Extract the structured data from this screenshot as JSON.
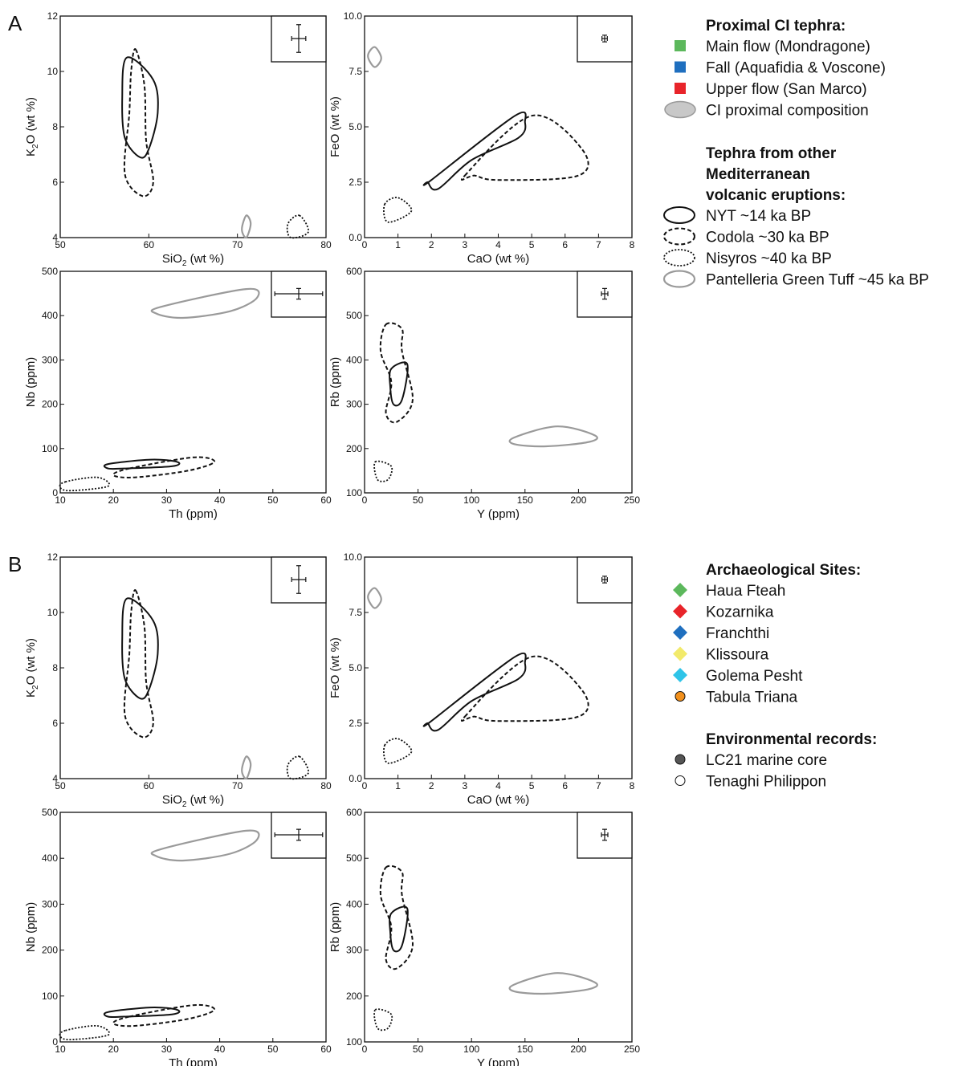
{
  "panel_labels": [
    "A",
    "B"
  ],
  "legend_a": {
    "title1": "Proximal CI tephra:",
    "items1": [
      {
        "label": "Main flow (Mondragone)",
        "color": "#5cb85c",
        "marker": "square"
      },
      {
        "label": "Fall (Aquafidia & Voscone)",
        "color": "#1f6fbf",
        "marker": "square"
      },
      {
        "label": "Upper flow (San Marco)",
        "color": "#e8242a",
        "marker": "square"
      },
      {
        "label": "CI proximal composition",
        "color": "#c8c8c8",
        "marker": "ellipse"
      }
    ],
    "title2_lines": [
      "Tephra from other",
      "Mediterranean",
      "volcanic eruptions:"
    ],
    "items2": [
      {
        "label": "NYT ~14 ka BP",
        "style": "solid"
      },
      {
        "label": "Codola ~30 ka BP",
        "style": "dashed"
      },
      {
        "label": "Nisyros ~40 ka BP",
        "style": "dotted"
      },
      {
        "label": "Pantelleria Green Tuff ~45 ka BP",
        "style": "gray"
      }
    ]
  },
  "legend_b": {
    "title1": "Archaeological Sites:",
    "items1": [
      {
        "label": "Haua Fteah",
        "color": "#5cb85c",
        "marker": "diamond"
      },
      {
        "label": "Kozarnika",
        "color": "#e8242a",
        "marker": "diamond"
      },
      {
        "label": "Franchthi",
        "color": "#1f6fbf",
        "marker": "diamond"
      },
      {
        "label": "Klissoura",
        "color": "#f2ea6b",
        "marker": "diamond"
      },
      {
        "label": "Golema Pesht",
        "color": "#2fc4e8",
        "marker": "diamond"
      },
      {
        "label": "Tabula Triana",
        "color": "#f2901c",
        "marker": "circle"
      }
    ],
    "title2": "Environmental records:",
    "items2": [
      {
        "label": "LC21 marine core",
        "color": "#555555",
        "marker": "circle"
      },
      {
        "label": "Tenaghi Philippon",
        "color": "#ffffff",
        "marker": "circle"
      }
    ]
  },
  "chart_data": [
    {
      "type": "scatter",
      "id": "k2o-sio2",
      "xlabel": "SiO",
      "xlabel_sub": "2",
      "xlabel_tail": " (wt %)",
      "ylabel": "K",
      "ylabel_sub": "2",
      "ylabel_tail": "O (wt %)",
      "xlim": [
        50,
        80
      ],
      "ylim": [
        4,
        12
      ],
      "xticks": [
        50,
        60,
        70,
        80
      ],
      "yticks": [
        4,
        6,
        8,
        10,
        12
      ],
      "xtick_labels": [
        "50",
        "60",
        "70",
        "80"
      ],
      "ytick_labels": [
        "4",
        "6",
        "8",
        "10",
        "12"
      ],
      "error_bar": {
        "x": 0.8,
        "y": 0.5
      },
      "fields": [
        {
          "style": "solid",
          "points": [
            [
              57.5,
              10.5
            ],
            [
              60.5,
              9.7
            ],
            [
              61,
              8.5
            ],
            [
              60,
              7.2
            ],
            [
              59,
              6.9
            ],
            [
              57.3,
              7.6
            ],
            [
              57,
              9.0
            ]
          ]
        },
        {
          "style": "dashed",
          "points": [
            [
              58.5,
              10.8
            ],
            [
              59.5,
              9.5
            ],
            [
              59.7,
              7.5
            ],
            [
              60.5,
              6.0
            ],
            [
              59.3,
              5.5
            ],
            [
              57.3,
              6.3
            ],
            [
              57.8,
              8.5
            ],
            [
              58,
              10
            ]
          ]
        },
        {
          "style": "gray",
          "points": [
            [
              71,
              4.8
            ],
            [
              71.5,
              4.5
            ],
            [
              71,
              4.0
            ],
            [
              70.5,
              4.3
            ]
          ]
        },
        {
          "style": "dotted",
          "points": [
            [
              77,
              4.8
            ],
            [
              78,
              4.2
            ],
            [
              76,
              4.0
            ],
            [
              75.7,
              4.5
            ]
          ]
        }
      ]
    },
    {
      "type": "scatter",
      "id": "feo-cao",
      "xlabel": "CaO (wt %)",
      "ylabel": "FeO (wt %)",
      "xlim": [
        0,
        8
      ],
      "ylim": [
        0,
        10
      ],
      "xticks": [
        0,
        1,
        2,
        3,
        4,
        5,
        6,
        7,
        8
      ],
      "yticks": [
        0,
        2.5,
        5,
        7.5,
        10
      ],
      "xtick_labels": [
        "0",
        "1",
        "2",
        "3",
        "4",
        "5",
        "6",
        "7",
        "8"
      ],
      "ytick_labels": [
        "0.0",
        "2.5",
        "5.0",
        "7.5",
        "10.0"
      ],
      "error_bar": {
        "x": 0.08,
        "y": 0.15
      },
      "fields": [
        {
          "style": "solid",
          "points": [
            [
              2.0,
              2.6
            ],
            [
              4.5,
              5.5
            ],
            [
              4.8,
              5.2
            ],
            [
              4.6,
              4.5
            ],
            [
              3.2,
              3.5
            ],
            [
              2.2,
              2.2
            ],
            [
              1.9,
              2.5
            ]
          ]
        },
        {
          "style": "dashed",
          "points": [
            [
              3.0,
              2.8
            ],
            [
              5.0,
              5.5
            ],
            [
              6.5,
              4.0
            ],
            [
              6.4,
              2.8
            ],
            [
              4.0,
              2.6
            ],
            [
              3.3,
              2.8
            ]
          ]
        },
        {
          "style": "dotted",
          "points": [
            [
              0.6,
              1.5
            ],
            [
              1.0,
              1.8
            ],
            [
              1.4,
              1.2
            ],
            [
              0.7,
              0.7
            ]
          ]
        },
        {
          "style": "gray",
          "points": [
            [
              0.3,
              8.6
            ],
            [
              0.5,
              8.1
            ],
            [
              0.3,
              7.7
            ],
            [
              0.1,
              8.2
            ]
          ]
        }
      ]
    },
    {
      "type": "scatter",
      "id": "nb-th",
      "xlabel": "Th (ppm)",
      "ylabel": "Nb (ppm)",
      "xlim": [
        10,
        60
      ],
      "ylim": [
        0,
        500
      ],
      "xticks": [
        10,
        20,
        30,
        40,
        50,
        60
      ],
      "yticks": [
        0,
        100,
        200,
        300,
        400,
        500
      ],
      "xtick_labels": [
        "10",
        "20",
        "30",
        "40",
        "50",
        "60"
      ],
      "ytick_labels": [
        "0",
        "100",
        "200",
        "300",
        "400",
        "500"
      ],
      "error_bar": {
        "x": 4.5,
        "y": 12
      },
      "fields": [
        {
          "style": "gray",
          "points": [
            [
              29,
              420
            ],
            [
              45,
              460
            ],
            [
              47,
              440
            ],
            [
              42,
              410
            ],
            [
              33,
              395
            ],
            [
              28,
              405
            ]
          ]
        },
        {
          "style": "solid",
          "points": [
            [
              19,
              65
            ],
            [
              27,
              75
            ],
            [
              32,
              70
            ],
            [
              31,
              60
            ],
            [
              22,
              55
            ],
            [
              19,
              55
            ]
          ]
        },
        {
          "style": "dashed",
          "points": [
            [
              23,
              55
            ],
            [
              35,
              80
            ],
            [
              39,
              70
            ],
            [
              34,
              50
            ],
            [
              24,
              35
            ],
            [
              20,
              40
            ]
          ]
        },
        {
          "style": "dotted",
          "points": [
            [
              11,
              25
            ],
            [
              17,
              35
            ],
            [
              19,
              15
            ],
            [
              12,
              5
            ],
            [
              10,
              12
            ]
          ]
        }
      ]
    },
    {
      "type": "scatter",
      "id": "rb-y",
      "xlabel": "Y (ppm)",
      "ylabel": "Rb (ppm)",
      "xlim": [
        0,
        250
      ],
      "ylim": [
        100,
        600
      ],
      "xticks": [
        0,
        50,
        100,
        150,
        200,
        250
      ],
      "yticks": [
        100,
        200,
        300,
        400,
        500,
        600
      ],
      "xtick_labels": [
        "0",
        "50",
        "100",
        "150",
        "200",
        "250"
      ],
      "ytick_labels": [
        "100",
        "200",
        "300",
        "400",
        "500",
        "600"
      ],
      "error_bar": {
        "x": 3,
        "y": 12
      },
      "fields": [
        {
          "style": "gray",
          "points": [
            [
              140,
              225
            ],
            [
              180,
              250
            ],
            [
              215,
              230
            ],
            [
              210,
              215
            ],
            [
              170,
              205
            ],
            [
              140,
              210
            ]
          ]
        },
        {
          "style": "dashed",
          "points": [
            [
              20,
              480
            ],
            [
              35,
              470
            ],
            [
              35,
              420
            ],
            [
              45,
              310
            ],
            [
              30,
              260
            ],
            [
              20,
              280
            ],
            [
              25,
              350
            ],
            [
              15,
              420
            ]
          ]
        },
        {
          "style": "solid",
          "points": [
            [
              25,
              380
            ],
            [
              40,
              390
            ],
            [
              35,
              310
            ],
            [
              27,
              300
            ],
            [
              24,
              340
            ]
          ]
        },
        {
          "style": "dotted",
          "points": [
            [
              10,
              170
            ],
            [
              25,
              160
            ],
            [
              22,
              130
            ],
            [
              12,
              130
            ]
          ]
        }
      ]
    }
  ]
}
